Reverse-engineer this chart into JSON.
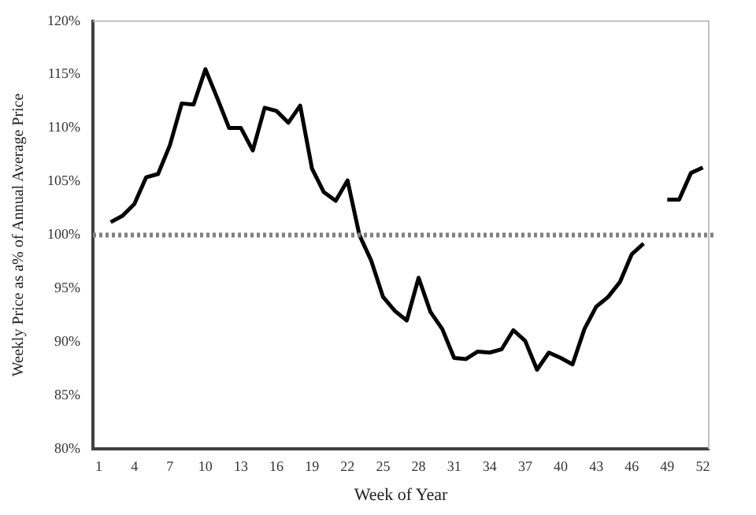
{
  "chart_data": {
    "type": "line",
    "xlabel": "Week of Year",
    "ylabel": "Weekly Price as a% of Annual Average Price",
    "categories": [
      "1",
      null,
      null,
      "4",
      null,
      null,
      "7",
      null,
      null,
      "10",
      null,
      null,
      "13",
      null,
      null,
      "16",
      null,
      null,
      "19",
      null,
      null,
      "22",
      null,
      null,
      "25",
      null,
      null,
      "28",
      null,
      null,
      "31",
      null,
      null,
      "34",
      null,
      null,
      "37",
      null,
      null,
      "40",
      null,
      null,
      "43",
      null,
      null,
      "46",
      null,
      null,
      "49",
      null,
      null,
      "52"
    ],
    "series": [
      {
        "color": "#000000",
        "values": [
          null,
          101.2,
          101.8,
          102.9,
          105.4,
          105.7,
          108.4,
          112.3,
          112.2,
          115.5,
          112.8,
          110.0,
          110.0,
          107.9,
          111.9,
          111.6,
          110.5,
          112.1,
          106.2,
          104.0,
          103.2,
          105.1,
          100.0,
          97.6,
          94.2,
          92.9,
          92.0,
          96.0,
          92.8,
          91.2,
          88.5,
          88.4,
          89.1,
          89.0,
          89.3,
          91.1,
          90.1,
          87.4,
          89.0,
          88.5,
          87.9,
          91.2,
          93.3,
          94.2,
          95.6,
          98.2,
          99.2,
          null,
          103.3,
          103.3,
          105.8,
          106.3
        ]
      }
    ],
    "ylim": [
      80,
      120
    ],
    "yticks": [
      {
        "value": 80,
        "label": "80%"
      },
      {
        "value": 85,
        "label": "85%"
      },
      {
        "value": 90,
        "label": "90%"
      },
      {
        "value": 95,
        "label": "95%"
      },
      {
        "value": 100,
        "label": "100%"
      },
      {
        "value": 105,
        "label": "105%"
      },
      {
        "value": 110,
        "label": "110%"
      },
      {
        "value": 115,
        "label": "115%"
      },
      {
        "value": 120,
        "label": "120%"
      }
    ],
    "ref_lines": [
      {
        "axis": "y",
        "value": 100,
        "color": "#808080",
        "line_style": "dotted"
      }
    ],
    "grid": false,
    "legend": false,
    "marker": "none",
    "line_style": "solid"
  }
}
